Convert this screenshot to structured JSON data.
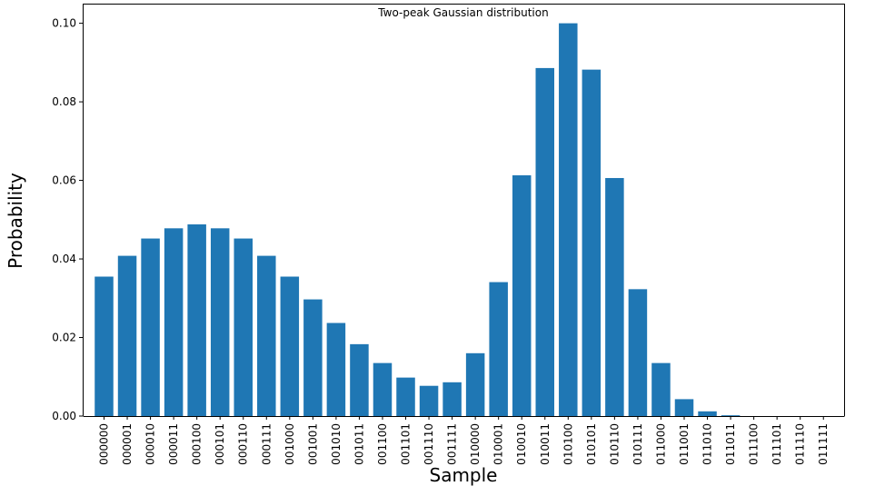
{
  "chart_data": {
    "type": "bar",
    "title": "Two-peak Gaussian distribution",
    "xlabel": "Sample",
    "ylabel": "Probability",
    "ylim": [
      0,
      0.105
    ],
    "yticks": [
      "0.00",
      "0.02",
      "0.04",
      "0.06",
      "0.08",
      "0.10"
    ],
    "categories": [
      "000000",
      "000001",
      "000010",
      "000011",
      "000100",
      "000101",
      "000110",
      "000111",
      "001000",
      "001001",
      "001010",
      "001011",
      "001100",
      "001101",
      "001110",
      "001111",
      "010000",
      "010001",
      "010010",
      "010011",
      "010100",
      "010101",
      "010110",
      "010111",
      "011000",
      "011001",
      "011010",
      "011011",
      "011100",
      "011101",
      "011110",
      "011111"
    ],
    "values": [
      0.0355,
      0.0408,
      0.0452,
      0.0478,
      0.0488,
      0.0478,
      0.0452,
      0.0408,
      0.0355,
      0.0297,
      0.0237,
      0.0183,
      0.0135,
      0.0098,
      0.0077,
      0.0086,
      0.016,
      0.0341,
      0.0613,
      0.0886,
      0.1,
      0.0882,
      0.0606,
      0.0323,
      0.0135,
      0.0043,
      0.0012,
      0.0002,
      0.0,
      0.0,
      0.0,
      0.0
    ],
    "bar_color": "#1f77b4",
    "grid": false,
    "legend": "none"
  }
}
